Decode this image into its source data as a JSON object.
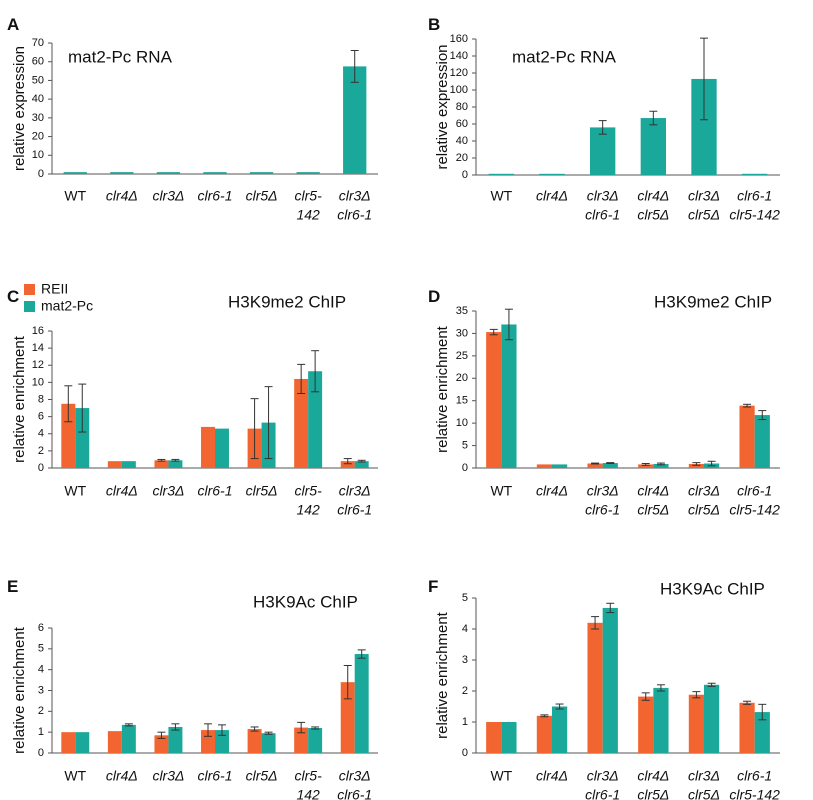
{
  "colors": {
    "reii": "#f26530",
    "mat2pc": "#1aa89a",
    "axis": "#555555",
    "text": "#111111"
  },
  "chart_data": [
    {
      "panel": "A",
      "type": "bar",
      "title": "mat2-Pc RNA",
      "ylabel": "relative expression",
      "ylim": [
        0,
        70
      ],
      "yticks": [
        0,
        10,
        20,
        30,
        40,
        50,
        60,
        70
      ],
      "categories": [
        [
          "WT"
        ],
        [
          "clr4Δ"
        ],
        [
          "clr3Δ"
        ],
        [
          "clr6-1"
        ],
        [
          "clr5Δ"
        ],
        [
          "clr5-",
          "142"
        ],
        [
          "clr3Δ",
          "clr6-1"
        ]
      ],
      "italic": [
        false,
        true,
        true,
        true,
        true,
        true,
        true
      ],
      "series": [
        {
          "color": "#1aa89a",
          "values": [
            1,
            1,
            1,
            1,
            1,
            1,
            57.5
          ],
          "err": [
            0,
            0,
            0,
            0,
            0,
            0,
            8.5
          ]
        }
      ]
    },
    {
      "panel": "B",
      "type": "bar",
      "title": "mat2-Pc RNA",
      "ylabel": "relative expression",
      "ylim": [
        0,
        160
      ],
      "yticks": [
        0,
        20,
        40,
        60,
        80,
        100,
        120,
        140,
        160
      ],
      "categories": [
        [
          "WT"
        ],
        [
          "clr4Δ"
        ],
        [
          "clr3Δ",
          "clr6-1"
        ],
        [
          "clr4Δ",
          "clr5Δ"
        ],
        [
          "clr3Δ",
          "clr5Δ"
        ],
        [
          "clr6-1",
          "clr5-142"
        ]
      ],
      "italic": [
        false,
        true,
        true,
        true,
        true,
        true
      ],
      "series": [
        {
          "color": "#1aa89a",
          "values": [
            1,
            1,
            56,
            67,
            113,
            1
          ],
          "err": [
            0,
            0,
            8,
            8,
            48,
            0
          ]
        }
      ]
    },
    {
      "panel": "C",
      "type": "bar",
      "title": "H3K9me2 ChIP",
      "ylabel": "relative enrichment",
      "ylim": [
        0,
        16
      ],
      "yticks": [
        0,
        2,
        4,
        6,
        8,
        10,
        12,
        14,
        16
      ],
      "legend": {
        "placement": "top-left",
        "entries": [
          "REII",
          "mat2-Pc"
        ]
      },
      "categories": [
        [
          "WT"
        ],
        [
          "clr4Δ"
        ],
        [
          "clr3Δ"
        ],
        [
          "clr6-1"
        ],
        [
          "clr5Δ"
        ],
        [
          "clr5-",
          "142"
        ],
        [
          "clr3Δ",
          "clr6-1"
        ]
      ],
      "italic": [
        false,
        true,
        true,
        true,
        true,
        true,
        true
      ],
      "series": [
        {
          "name": "REII",
          "color": "#f26530",
          "values": [
            7.5,
            0.8,
            0.9,
            4.8,
            4.6,
            10.4,
            0.8
          ],
          "err": [
            2.1,
            0,
            0.1,
            0,
            3.5,
            1.7,
            0.3
          ]
        },
        {
          "name": "mat2-Pc",
          "color": "#1aa89a",
          "values": [
            7.0,
            0.8,
            0.9,
            4.6,
            5.3,
            11.3,
            0.8
          ],
          "err": [
            2.8,
            0,
            0.1,
            0,
            4.2,
            2.4,
            0.1
          ]
        }
      ]
    },
    {
      "panel": "D",
      "type": "bar",
      "title": "H3K9me2 ChIP",
      "ylabel": "relative enrichment",
      "ylim": [
        0,
        35
      ],
      "yticks": [
        0,
        5,
        10,
        15,
        20,
        25,
        30,
        35
      ],
      "categories": [
        [
          "WT"
        ],
        [
          "clr4Δ"
        ],
        [
          "clr3Δ",
          "clr6-1"
        ],
        [
          "clr4Δ",
          "clr5Δ"
        ],
        [
          "clr3Δ",
          "clr5Δ"
        ],
        [
          "clr6-1",
          "clr5-142"
        ]
      ],
      "italic": [
        false,
        true,
        true,
        true,
        true,
        true
      ],
      "series": [
        {
          "name": "REII",
          "color": "#f26530",
          "values": [
            30.3,
            0.8,
            1.0,
            0.8,
            0.9,
            13.9
          ],
          "err": [
            0.6,
            0,
            0.1,
            0.2,
            0.3,
            0.3
          ]
        },
        {
          "name": "mat2-Pc",
          "color": "#1aa89a",
          "values": [
            32.0,
            0.8,
            1.1,
            0.9,
            1.0,
            11.8
          ],
          "err": [
            3.4,
            0,
            0.1,
            0.2,
            0.5,
            1.0
          ]
        }
      ]
    },
    {
      "panel": "E",
      "type": "bar",
      "title": "H3K9Ac ChIP",
      "ylabel": "relative enrichment",
      "ylim": [
        0,
        6
      ],
      "yticks": [
        0,
        1,
        2,
        3,
        4,
        5,
        6
      ],
      "categories": [
        [
          "WT"
        ],
        [
          "clr4Δ"
        ],
        [
          "clr3Δ"
        ],
        [
          "clr6-1"
        ],
        [
          "clr5Δ"
        ],
        [
          "clr5-",
          "142"
        ],
        [
          "clr3Δ",
          "clr6-1"
        ]
      ],
      "italic": [
        false,
        true,
        true,
        true,
        true,
        true,
        true
      ],
      "series": [
        {
          "name": "REII",
          "color": "#f26530",
          "values": [
            1.0,
            1.05,
            0.85,
            1.1,
            1.15,
            1.22,
            3.4
          ],
          "err": [
            0,
            0,
            0.15,
            0.3,
            0.1,
            0.25,
            0.8
          ]
        },
        {
          "name": "mat2-Pc",
          "color": "#1aa89a",
          "values": [
            1.0,
            1.35,
            1.25,
            1.1,
            0.95,
            1.2,
            4.75
          ],
          "err": [
            0,
            0.05,
            0.15,
            0.25,
            0.05,
            0.05,
            0.2
          ]
        }
      ]
    },
    {
      "panel": "F",
      "type": "bar",
      "title": "H3K9Ac ChIP",
      "ylabel": "relative enrichment",
      "ylim": [
        0,
        5
      ],
      "yticks": [
        0,
        1,
        2,
        3,
        4,
        5
      ],
      "categories": [
        [
          "WT"
        ],
        [
          "clr4Δ"
        ],
        [
          "clr3Δ",
          "clr6-1"
        ],
        [
          "clr4Δ",
          "clr5Δ"
        ],
        [
          "clr3Δ",
          "clr5Δ"
        ],
        [
          "clr6-1",
          "clr5-142"
        ]
      ],
      "italic": [
        false,
        true,
        true,
        true,
        true,
        true
      ],
      "series": [
        {
          "name": "REII",
          "color": "#f26530",
          "values": [
            1.0,
            1.2,
            4.2,
            1.82,
            1.88,
            1.62
          ],
          "err": [
            0,
            0.03,
            0.2,
            0.12,
            0.1,
            0.05
          ]
        },
        {
          "name": "mat2-Pc",
          "color": "#1aa89a",
          "values": [
            1.0,
            1.5,
            4.68,
            2.1,
            2.2,
            1.32
          ],
          "err": [
            0,
            0.08,
            0.15,
            0.1,
            0.05,
            0.25
          ]
        }
      ]
    }
  ]
}
